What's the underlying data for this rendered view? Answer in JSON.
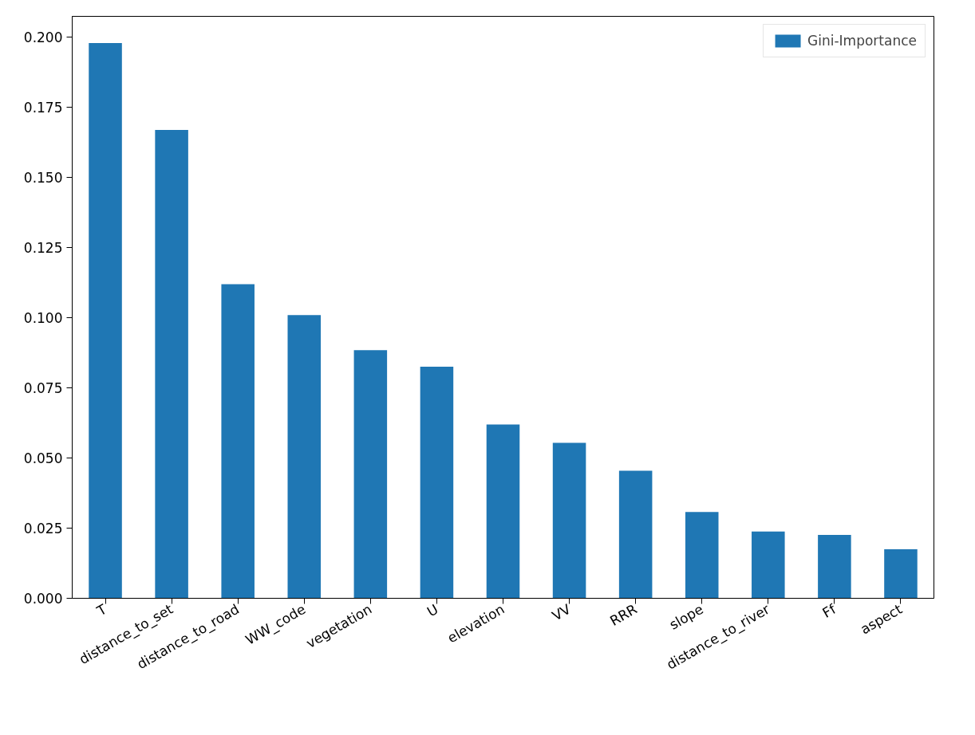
{
  "chart_data": {
    "type": "bar",
    "categories": [
      "T",
      "distance_to_set",
      "distance_to_road",
      "WW_code",
      "vegetation",
      "U",
      "elevation",
      "VV",
      "RRR",
      "slope",
      "distance_to_river",
      "Ff",
      "aspect"
    ],
    "series": [
      {
        "name": "Gini-Importance",
        "color": "#1f77b4",
        "values": [
          0.198,
          0.167,
          0.112,
          0.101,
          0.0885,
          0.0826,
          0.062,
          0.0554,
          0.0455,
          0.0308,
          0.0238,
          0.0226,
          0.0175
        ]
      }
    ],
    "ylim": [
      0,
      0.2075
    ],
    "yticks": [
      {
        "value": 0,
        "label": "0.000"
      },
      {
        "value": 0.025,
        "label": "0.025"
      },
      {
        "value": 0.05,
        "label": "0.050"
      },
      {
        "value": 0.075,
        "label": "0.075"
      },
      {
        "value": 0.1,
        "label": "0.100"
      },
      {
        "value": 0.125,
        "label": "0.125"
      },
      {
        "value": 0.15,
        "label": "0.150"
      },
      {
        "value": 0.175,
        "label": "0.175"
      },
      {
        "value": 0.2,
        "label": "0.200"
      }
    ],
    "grid": false,
    "legend": "top right"
  }
}
